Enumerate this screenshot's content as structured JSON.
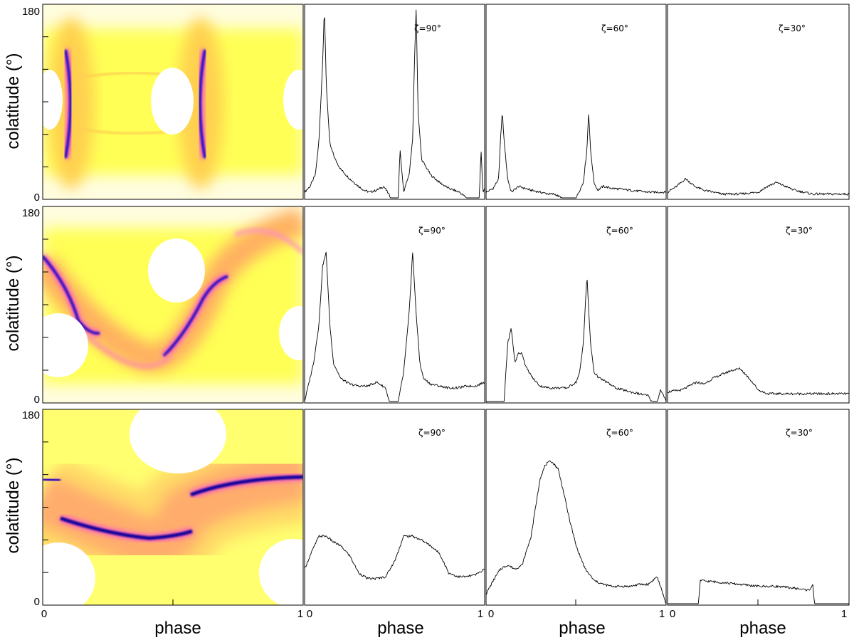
{
  "chart_data": {
    "type": "line",
    "layout_rows": 3,
    "xlabel": "phase",
    "ylabel": "colatitude (°)",
    "sky_map": {
      "x_ticks": [
        "0",
        "1"
      ],
      "y_ticks": [
        "0",
        "180"
      ],
      "colormap": [
        "#ffff66",
        "#ffd050",
        "#ff9080",
        "#ff60c0",
        "#8020d0",
        "#0000a0"
      ],
      "blank_color": "#ffffff"
    },
    "light_curve_x_ticks": [
      {
        "left": "0",
        "right": "1"
      },
      {
        "left": "0",
        "right": "1"
      },
      {
        "left": "0",
        "right": "1"
      }
    ],
    "panels": [
      {
        "row": 0,
        "curves": [
          {
            "label": "ζ=90°",
            "x": [
              0,
              0.03,
              0.06,
              0.08,
              0.1,
              0.11,
              0.12,
              0.14,
              0.17,
              0.2,
              0.25,
              0.3,
              0.33,
              0.36,
              0.4,
              0.44,
              0.46,
              0.48,
              0.49,
              0.5,
              0.52,
              0.53,
              0.55,
              0.58,
              0.6,
              0.61,
              0.62,
              0.63,
              0.65,
              0.7,
              0.75,
              0.8,
              0.83,
              0.86,
              0.9,
              0.94,
              0.96,
              0.97,
              0.98,
              0.99,
              1
            ],
            "y": [
              0.03,
              0.06,
              0.12,
              0.3,
              0.7,
              1.0,
              0.6,
              0.28,
              0.2,
              0.15,
              0.1,
              0.06,
              0.04,
              0.03,
              0.04,
              0.06,
              0.03,
              0.0,
              0.0,
              0.0,
              0.0,
              0.25,
              0.03,
              0.12,
              0.3,
              0.7,
              1.0,
              0.45,
              0.2,
              0.12,
              0.08,
              0.05,
              0.04,
              0.03,
              0.0,
              0.0,
              0.0,
              0.0,
              0.25,
              0.03,
              0.05
            ]
          },
          {
            "label": "ζ=60°",
            "x": [
              0,
              0.04,
              0.07,
              0.08,
              0.09,
              0.1,
              0.12,
              0.14,
              0.18,
              0.25,
              0.3,
              0.35,
              0.38,
              0.42,
              0.45,
              0.5,
              0.54,
              0.56,
              0.57,
              0.58,
              0.6,
              0.62,
              0.65,
              0.7,
              0.8,
              0.9,
              1
            ],
            "y": [
              0.03,
              0.05,
              0.1,
              0.3,
              0.45,
              0.3,
              0.1,
              0.03,
              0.06,
              0.04,
              0.03,
              0.02,
              0.02,
              0.0,
              0.0,
              0.0,
              0.08,
              0.25,
              0.45,
              0.25,
              0.08,
              0.04,
              0.06,
              0.05,
              0.04,
              0.03,
              0.03
            ]
          },
          {
            "label": "ζ=30°",
            "x": [
              0,
              0.05,
              0.1,
              0.15,
              0.2,
              0.3,
              0.4,
              0.5,
              0.55,
              0.6,
              0.65,
              0.7,
              0.8,
              0.9,
              1
            ],
            "y": [
              0.03,
              0.06,
              0.1,
              0.06,
              0.04,
              0.02,
              0.02,
              0.03,
              0.06,
              0.08,
              0.06,
              0.04,
              0.02,
              0.02,
              0.02
            ]
          }
        ]
      },
      {
        "row": 1,
        "curves": [
          {
            "label": "ζ=90°",
            "x": [
              0,
              0.02,
              0.05,
              0.08,
              0.1,
              0.12,
              0.14,
              0.16,
              0.2,
              0.25,
              0.3,
              0.35,
              0.4,
              0.45,
              0.47,
              0.5,
              0.52,
              0.55,
              0.58,
              0.6,
              0.62,
              0.64,
              0.66,
              0.7,
              0.75,
              0.8,
              0.85,
              0.9,
              0.95,
              1
            ],
            "y": [
              0.0,
              0.08,
              0.2,
              0.4,
              0.7,
              0.77,
              0.4,
              0.2,
              0.12,
              0.09,
              0.08,
              0.08,
              0.1,
              0.07,
              0.0,
              0.0,
              0.0,
              0.15,
              0.45,
              0.77,
              0.45,
              0.2,
              0.12,
              0.09,
              0.08,
              0.07,
              0.07,
              0.08,
              0.08,
              0.1
            ]
          },
          {
            "label": "ζ=60°",
            "x": [
              0,
              0.1,
              0.11,
              0.12,
              0.14,
              0.16,
              0.18,
              0.2,
              0.22,
              0.26,
              0.3,
              0.35,
              0.4,
              0.45,
              0.5,
              0.52,
              0.54,
              0.56,
              0.58,
              0.6,
              0.63,
              0.67,
              0.72,
              0.8,
              0.85,
              0.9,
              0.92,
              0.95,
              0.97,
              1
            ],
            "y": [
              0.0,
              0.0,
              0.15,
              0.3,
              0.38,
              0.2,
              0.25,
              0.25,
              0.18,
              0.12,
              0.08,
              0.07,
              0.07,
              0.07,
              0.1,
              0.15,
              0.3,
              0.65,
              0.3,
              0.15,
              0.12,
              0.1,
              0.07,
              0.05,
              0.04,
              0.03,
              0.0,
              0.0,
              0.06,
              0.0
            ]
          },
          {
            "label": "ζ=30°",
            "x": [
              0,
              0.08,
              0.16,
              0.2,
              0.25,
              0.3,
              0.35,
              0.4,
              0.45,
              0.5,
              0.55,
              0.6,
              0.7,
              0.8,
              0.9,
              1
            ],
            "y": [
              0.05,
              0.06,
              0.1,
              0.09,
              0.12,
              0.14,
              0.16,
              0.17,
              0.12,
              0.06,
              0.04,
              0.04,
              0.04,
              0.04,
              0.04,
              0.04
            ]
          }
        ]
      },
      {
        "row": 2,
        "curves": [
          {
            "label": "ζ=90°",
            "x": [
              0,
              0.04,
              0.08,
              0.12,
              0.16,
              0.2,
              0.25,
              0.3,
              0.35,
              0.4,
              0.45,
              0.5,
              0.55,
              0.6,
              0.65,
              0.7,
              0.75,
              0.8,
              0.85,
              0.9,
              0.95,
              1
            ],
            "y": [
              0.18,
              0.27,
              0.35,
              0.35,
              0.32,
              0.3,
              0.25,
              0.16,
              0.13,
              0.13,
              0.14,
              0.22,
              0.35,
              0.35,
              0.33,
              0.3,
              0.26,
              0.16,
              0.14,
              0.14,
              0.15,
              0.18
            ]
          },
          {
            "label": "ζ=60°",
            "x": [
              0,
              0.04,
              0.08,
              0.12,
              0.16,
              0.2,
              0.25,
              0.3,
              0.33,
              0.36,
              0.4,
              0.43,
              0.46,
              0.5,
              0.55,
              0.6,
              0.65,
              0.7,
              0.75,
              0.8,
              0.85,
              0.9,
              0.95,
              1
            ],
            "y": [
              0.05,
              0.12,
              0.18,
              0.2,
              0.18,
              0.2,
              0.35,
              0.65,
              0.72,
              0.74,
              0.7,
              0.58,
              0.45,
              0.3,
              0.18,
              0.12,
              0.1,
              0.09,
              0.09,
              0.09,
              0.1,
              0.1,
              0.14,
              0.0
            ]
          },
          {
            "label": "ζ=30°",
            "x": [
              0,
              0.17,
              0.18,
              0.3,
              0.4,
              0.5,
              0.6,
              0.7,
              0.78,
              0.8,
              0.81,
              1
            ],
            "y": [
              0.0,
              0.0,
              0.12,
              0.11,
              0.1,
              0.09,
              0.09,
              0.08,
              0.07,
              0.1,
              0.0,
              0.0
            ]
          }
        ]
      }
    ]
  }
}
